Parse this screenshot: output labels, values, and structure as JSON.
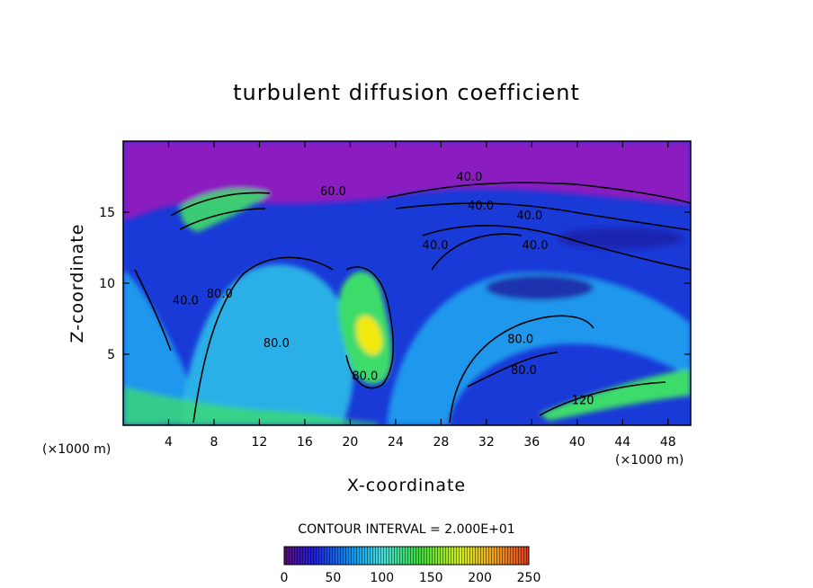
{
  "chart_data": {
    "type": "heatmap",
    "title": "turbulent diffusion coefficient",
    "xlabel": "X-coordinate",
    "ylabel": "Z-coordinate",
    "x_unit": "(×1000 m)",
    "y_unit": "(×1000 m)",
    "x_ticks": [
      4,
      8,
      12,
      16,
      20,
      24,
      28,
      32,
      36,
      40,
      44,
      48
    ],
    "y_ticks": [
      5,
      10,
      15
    ],
    "xlim": [
      0,
      50
    ],
    "ylim": [
      0,
      20
    ],
    "contour_interval_text": "CONTOUR INTERVAL = 2.000E+01",
    "contour_labels": [
      {
        "text": "40.0",
        "x": 30.5,
        "y": 17.2
      },
      {
        "text": "40.0",
        "x": 31.5,
        "y": 15.2
      },
      {
        "text": "40.0",
        "x": 35.8,
        "y": 14.5
      },
      {
        "text": "40.0",
        "x": 36.3,
        "y": 12.4
      },
      {
        "text": "40.0",
        "x": 27.5,
        "y": 12.4
      },
      {
        "text": "40.0",
        "x": 5.5,
        "y": 8.5
      },
      {
        "text": "80.0",
        "x": 8.5,
        "y": 9.0
      },
      {
        "text": "80.0",
        "x": 13.5,
        "y": 5.5
      },
      {
        "text": "80.0",
        "x": 35.0,
        "y": 5.8
      },
      {
        "text": "80.0",
        "x": 35.3,
        "y": 3.6
      },
      {
        "text": "120",
        "x": 40.5,
        "y": 1.5
      },
      {
        "text": "80.0",
        "x": 21.3,
        "y": 3.2
      },
      {
        "text": "60.0",
        "x": 18.5,
        "y": 16.2
      }
    ],
    "colorbar": {
      "min": 0,
      "max": 250,
      "ticks": [
        0,
        50,
        100,
        150,
        200,
        250
      ],
      "colormap": [
        "#5a0a78",
        "#1e1ee0",
        "#0a96f0",
        "#46dcdc",
        "#3cdc3c",
        "#d2f01e",
        "#f0a01e",
        "#dc3c1e"
      ]
    },
    "colors": {
      "background": "#8a1fc0",
      "low": "#1a3ad8",
      "mid": "#22a8f0",
      "high": "#3ddc6a",
      "peak": "#f2e80a"
    }
  }
}
